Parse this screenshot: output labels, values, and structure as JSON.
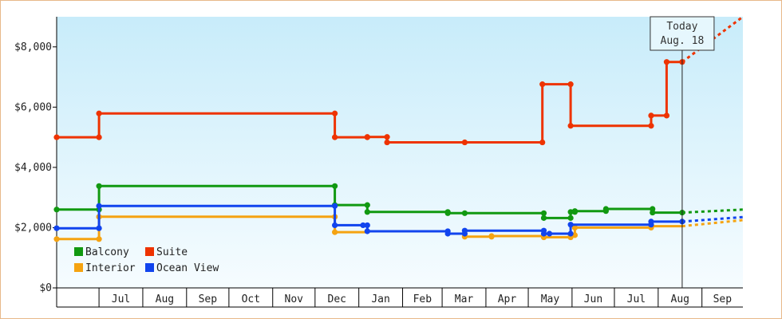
{
  "chart_data": {
    "type": "line",
    "step": true,
    "grid": false,
    "legend_position": "bottom-left",
    "ylim": [
      0,
      9000
    ],
    "y_ticks": [
      0,
      2000,
      4000,
      6000,
      8000
    ],
    "y_tick_labels": [
      "$0",
      "$2,000",
      "$4,000",
      "$6,000",
      "$8,000"
    ],
    "x_tick_labels": [
      "Jul",
      "Aug",
      "Sep",
      "Oct",
      "Nov",
      "Dec",
      "Jan",
      "Feb",
      "Mar",
      "Apr",
      "May",
      "Jun",
      "Jul",
      "Aug",
      "Sep"
    ],
    "x_tick_dates": [
      "2009-07-01",
      "2009-08-01",
      "2009-09-01",
      "2009-10-01",
      "2009-11-01",
      "2009-12-01",
      "2010-01-01",
      "2010-02-01",
      "2010-03-01",
      "2010-04-01",
      "2010-05-01",
      "2010-06-01",
      "2010-07-01",
      "2010-08-01",
      "2010-09-01"
    ],
    "xlim": [
      "2009-06-01",
      "2010-09-30"
    ],
    "today": {
      "line1": "Today",
      "line2": "Aug. 18",
      "date": "2010-08-18"
    },
    "series": [
      {
        "name": "Balcony",
        "color": "#119911",
        "points": [
          [
            "2009-06-01",
            2600
          ],
          [
            "2009-07-01",
            2600
          ],
          [
            "2009-07-01",
            3380
          ],
          [
            "2009-12-15",
            3380
          ],
          [
            "2009-12-15",
            2750
          ],
          [
            "2010-01-07",
            2750
          ],
          [
            "2010-01-07",
            2520
          ],
          [
            "2010-03-05",
            2520
          ],
          [
            "2010-03-05",
            2480
          ],
          [
            "2010-03-17",
            2480
          ],
          [
            "2010-05-12",
            2480
          ],
          [
            "2010-05-12",
            2320
          ],
          [
            "2010-05-31",
            2320
          ],
          [
            "2010-05-31",
            2520
          ],
          [
            "2010-06-03",
            2520
          ],
          [
            "2010-06-03",
            2550
          ],
          [
            "2010-06-25",
            2550
          ],
          [
            "2010-06-25",
            2620
          ],
          [
            "2010-07-28",
            2620
          ],
          [
            "2010-07-28",
            2500
          ],
          [
            "2010-08-18",
            2500
          ]
        ],
        "projection": [
          [
            "2010-08-18",
            2500
          ],
          [
            "2010-09-30",
            2600
          ]
        ]
      },
      {
        "name": "Suite",
        "color": "#ee3300",
        "points": [
          [
            "2009-06-01",
            5000
          ],
          [
            "2009-07-01",
            5000
          ],
          [
            "2009-07-01",
            5790
          ],
          [
            "2009-12-15",
            5790
          ],
          [
            "2009-12-15",
            5000
          ],
          [
            "2010-01-07",
            5000
          ],
          [
            "2010-01-07",
            5010
          ],
          [
            "2010-01-21",
            5010
          ],
          [
            "2010-01-21",
            4830
          ],
          [
            "2010-03-17",
            4830
          ],
          [
            "2010-05-11",
            4830
          ],
          [
            "2010-05-11",
            6760
          ],
          [
            "2010-05-31",
            6760
          ],
          [
            "2010-05-31",
            5380
          ],
          [
            "2010-07-27",
            5380
          ],
          [
            "2010-07-27",
            5720
          ],
          [
            "2010-08-07",
            5720
          ],
          [
            "2010-08-07",
            7500
          ],
          [
            "2010-08-18",
            7500
          ]
        ],
        "projection": [
          [
            "2010-08-18",
            7500
          ],
          [
            "2010-09-30",
            9000
          ]
        ]
      },
      {
        "name": "Interior",
        "color": "#f5a311",
        "points": [
          [
            "2009-06-01",
            1620
          ],
          [
            "2009-07-01",
            1620
          ],
          [
            "2009-07-01",
            2360
          ],
          [
            "2009-12-15",
            2360
          ],
          [
            "2009-12-15",
            1850
          ],
          [
            "2010-01-07",
            1850
          ],
          [
            "2010-01-07",
            1880
          ],
          [
            "2010-03-05",
            1880
          ],
          [
            "2010-03-05",
            1800
          ],
          [
            "2010-03-17",
            1800
          ],
          [
            "2010-03-17",
            1700
          ],
          [
            "2010-04-05",
            1700
          ],
          [
            "2010-04-05",
            1720
          ],
          [
            "2010-05-12",
            1720
          ],
          [
            "2010-05-12",
            1680
          ],
          [
            "2010-05-31",
            1680
          ],
          [
            "2010-05-31",
            1750
          ],
          [
            "2010-06-03",
            1750
          ],
          [
            "2010-06-03",
            2000
          ],
          [
            "2010-07-27",
            2000
          ],
          [
            "2010-07-27",
            2050
          ],
          [
            "2010-08-18",
            2050
          ]
        ],
        "projection": [
          [
            "2010-08-18",
            2050
          ],
          [
            "2010-09-30",
            2250
          ]
        ]
      },
      {
        "name": "Ocean View",
        "color": "#1144ee",
        "points": [
          [
            "2009-06-01",
            1980
          ],
          [
            "2009-07-01",
            1980
          ],
          [
            "2009-07-01",
            2720
          ],
          [
            "2009-12-15",
            2720
          ],
          [
            "2009-12-15",
            2080
          ],
          [
            "2010-01-07",
            2080
          ],
          [
            "2010-01-07",
            1880
          ],
          [
            "2010-03-05",
            1880
          ],
          [
            "2010-03-05",
            1800
          ],
          [
            "2010-03-17",
            1800
          ],
          [
            "2010-03-17",
            1900
          ],
          [
            "2010-05-12",
            1900
          ],
          [
            "2010-05-12",
            1800
          ],
          [
            "2010-05-31",
            1800
          ],
          [
            "2010-05-31",
            2100
          ],
          [
            "2010-07-27",
            2100
          ],
          [
            "2010-07-27",
            2200
          ],
          [
            "2010-08-18",
            2200
          ]
        ],
        "projection": [
          [
            "2010-08-18",
            2200
          ],
          [
            "2010-09-30",
            2350
          ]
        ]
      }
    ],
    "markers": {
      "Balcony": [
        "2009-06-01",
        "2009-07-01",
        "2009-12-15",
        "2010-01-07",
        "2010-03-05",
        "2010-03-17",
        "2010-05-12",
        "2010-05-31",
        "2010-06-03",
        "2010-06-25",
        "2010-07-28",
        "2010-08-18"
      ],
      "Suite": [
        "2009-06-01",
        "2009-07-01",
        "2009-12-15",
        "2010-01-07",
        "2010-01-21",
        "2010-03-17",
        "2010-05-11",
        "2010-05-31",
        "2010-07-27",
        "2010-08-07",
        "2010-08-18"
      ],
      "Interior": [
        "2009-06-01",
        "2009-07-01",
        "2009-12-15",
        "2010-03-17",
        "2010-04-05",
        "2010-05-12",
        "2010-05-31",
        "2010-06-03",
        "2010-07-27"
      ],
      "Ocean View": [
        "2009-06-01",
        "2009-07-01",
        "2009-12-15",
        "2010-01-04",
        "2010-01-07",
        "2010-03-05",
        "2010-03-17",
        "2010-05-12",
        "2010-05-16",
        "2010-05-31",
        "2010-07-27",
        "2010-08-18"
      ]
    }
  }
}
